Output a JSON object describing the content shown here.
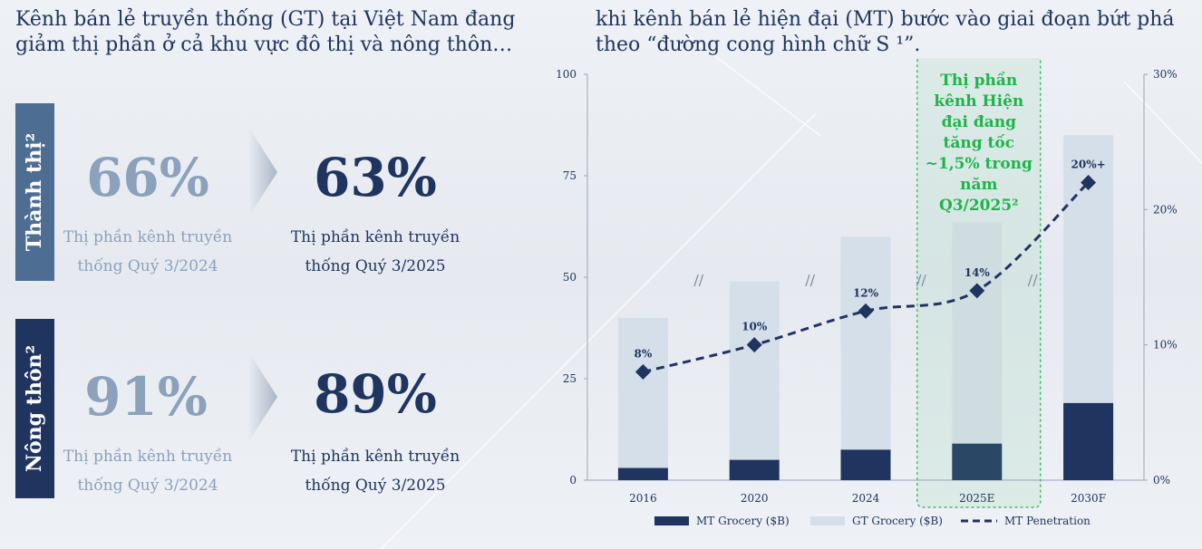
{
  "headings": {
    "left": "Kênh bán lẻ truyền thống (GT) tại Việt Nam đang giảm thị phần ở cả khu vực đô thị và nông thôn…",
    "right": "khi kênh bán lẻ hiện đại (MT) bước vào giai đoạn bứt phá theo “đường cong hình chữ S ¹”."
  },
  "urban": {
    "label": "Thành thị²",
    "old_value": "66%",
    "old_caption_1": "Thị phần kênh truyền",
    "old_caption_2": "thống Quý 3/2024",
    "new_value": "63%",
    "new_caption_1": "Thị phần kênh truyền",
    "new_caption_2": "thống Quý 3/2025"
  },
  "rural": {
    "label": "Nông thôn²",
    "old_value": "91%",
    "old_caption_1": "Thị phần kênh truyền",
    "old_caption_2": "thống Quý 3/2024",
    "new_value": "89%",
    "new_caption_1": "Thị phần kênh truyền",
    "new_caption_2": "thống Quý 3/2025"
  },
  "colors": {
    "navy": "#1f3560",
    "light_bar": "#d5dfe9",
    "highlight_green": "#1db54a"
  },
  "chart_data": {
    "type": "bar",
    "categories": [
      "2016",
      "2020",
      "2024",
      "2025E",
      "2030F"
    ],
    "series": [
      {
        "name": "MT Grocery ($B)",
        "kind": "stacked-bar",
        "axis": "left",
        "values": [
          3,
          5,
          7.5,
          9,
          19
        ]
      },
      {
        "name": "GT Grocery ($B)",
        "kind": "stacked-bar",
        "axis": "left",
        "values": [
          37,
          44,
          52.5,
          54.5,
          66
        ]
      },
      {
        "name": "MT Penetration",
        "kind": "dashed-line",
        "axis": "right",
        "values": [
          8,
          10,
          12.5,
          14,
          22
        ]
      }
    ],
    "data_labels": [
      "8%",
      "10%",
      "12%",
      "14%",
      "20%+"
    ],
    "ylim_left": [
      0,
      100
    ],
    "yticks_left": [
      "0",
      "25",
      "50",
      "75",
      "100"
    ],
    "ylim_right": [
      0,
      30
    ],
    "yticks_right": [
      "0%",
      "10%",
      "20%",
      "30%"
    ],
    "highlight_category": "2025E",
    "highlight_text": [
      "Thị phần",
      "kênh Hiện",
      "đại đang",
      "tăng tốc",
      "~1,5% trong",
      "năm",
      "Q3/2025²"
    ],
    "legend": [
      "MT Grocery ($B)",
      "GT Grocery ($B)",
      "MT Penetration"
    ],
    "legend_position": "bottom",
    "break_marks": "//"
  }
}
